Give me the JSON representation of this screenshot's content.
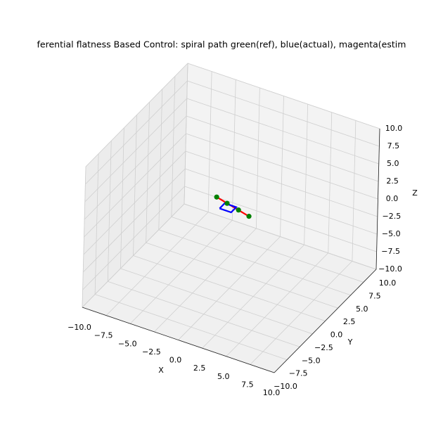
{
  "chart_data": {
    "type": "line3d",
    "title": "ferential flatness Based Control: spiral path green(ref), blue(actual), magenta(estim",
    "xlabel": "X",
    "ylabel": "Y",
    "zlabel": "Z",
    "xlim": [
      -10,
      10
    ],
    "ylim": [
      -10,
      10
    ],
    "zlim": [
      -10,
      10
    ],
    "xticks": [
      {
        "value": -10,
        "label": "−10.0"
      },
      {
        "value": -7.5,
        "label": "−7.5"
      },
      {
        "value": -5,
        "label": "−5.0"
      },
      {
        "value": -2.5,
        "label": "−2.5"
      },
      {
        "value": 0,
        "label": "0.0"
      },
      2.5,
      {
        "value": 5,
        "label": "5.0"
      },
      7.5,
      {
        "value": 10,
        "label": "10.0"
      }
    ],
    "yticks": [
      {
        "value": -10,
        "label": "−10.0"
      },
      {
        "value": -7.5,
        "label": "−7.5"
      },
      {
        "value": -5,
        "label": "−5.0"
      },
      {
        "value": -2.5,
        "label": "−2.5"
      },
      {
        "value": 0,
        "label": "0.0"
      },
      2.5,
      {
        "value": 5,
        "label": "5.0"
      },
      7.5,
      {
        "value": 10,
        "label": "10.0"
      }
    ],
    "zticks": [
      {
        "value": -10,
        "label": "−10.0"
      },
      {
        "value": -7.5,
        "label": "−7.5"
      },
      {
        "value": -5,
        "label": "−5.0"
      },
      {
        "value": -2.5,
        "label": "−2.5"
      },
      {
        "value": 0,
        "label": "0.0"
      },
      2.5,
      {
        "value": 5,
        "label": "5.0"
      },
      7.5,
      {
        "value": 10,
        "label": "10.0"
      }
    ],
    "grid": true,
    "series": [
      {
        "color": "#ff0000",
        "style": "line",
        "x": [
          -2.2,
          1.8
        ],
        "y": [
          1.3,
          0.1
        ],
        "z": [
          1,
          1
        ]
      },
      {
        "color": "#0000ff",
        "style": "line",
        "x": [
          -1.2,
          0,
          0,
          -1.2,
          -1.2
        ],
        "y": [
          0,
          0,
          1,
          1,
          0
        ],
        "z": [
          0.8,
          0.8,
          0.8,
          0.8,
          0.8
        ]
      },
      {
        "color": "#008000",
        "style": "markers",
        "x": [
          -2.2,
          -0.9,
          0.5,
          1.8
        ],
        "y": [
          1.3,
          0.9,
          0.5,
          0.1
        ],
        "z": [
          1,
          1,
          1,
          1
        ]
      }
    ]
  }
}
